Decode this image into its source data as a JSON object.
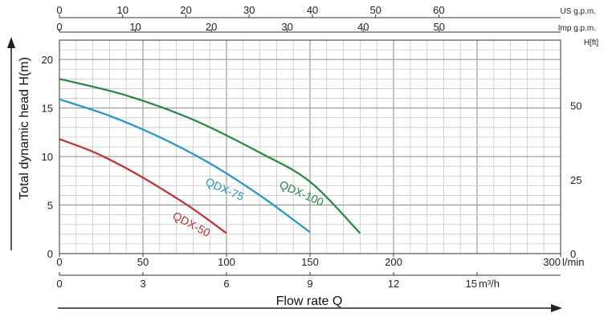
{
  "chart_data": {
    "type": "line",
    "xlabel": "Flow rate Q",
    "ylabel": "Total dynamic head H(m)",
    "grid": true,
    "x_unit": "l/min",
    "xlim": [
      0,
      300
    ],
    "ylim": [
      0,
      22
    ],
    "x_ticks": [
      "0",
      "50",
      "100",
      "150",
      "200",
      "300"
    ],
    "x_ticks_unit_label": "l/min",
    "y_ticks": [
      "0",
      "5",
      "10",
      "15",
      "20"
    ],
    "secondary_axes": {
      "m3h": {
        "unit": "m³/h",
        "ticks": [
          "0",
          "3",
          "6",
          "9",
          "12",
          "15"
        ]
      },
      "us_gpm": {
        "unit": "US g.p.m.",
        "ticks": [
          "0",
          "10",
          "20",
          "30",
          "40",
          "50",
          "60"
        ]
      },
      "imp_gpm": {
        "unit": "Imp g.p.m.",
        "ticks": [
          "0",
          "10",
          "20",
          "30",
          "40",
          "50"
        ]
      },
      "h_ft": {
        "unit": "H[ft]",
        "ticks": [
          "0",
          "25",
          "50"
        ]
      }
    },
    "series": [
      {
        "name": "QDX-50",
        "color": "#cc2a2a",
        "x": [
          0,
          20,
          40,
          60,
          80,
          100
        ],
        "y": [
          11.8,
          10.5,
          8.8,
          6.8,
          4.6,
          2.1
        ]
      },
      {
        "name": "QDX-75",
        "color": "#1e96d2",
        "x": [
          0,
          30,
          60,
          90,
          120,
          150
        ],
        "y": [
          15.9,
          14.2,
          12.0,
          9.3,
          6.0,
          2.2
        ]
      },
      {
        "name": "QDX-100",
        "color": "#1f8a3c",
        "x": [
          0,
          40,
          80,
          120,
          150,
          180
        ],
        "y": [
          18.0,
          16.3,
          13.8,
          10.4,
          7.4,
          2.1
        ]
      }
    ]
  }
}
